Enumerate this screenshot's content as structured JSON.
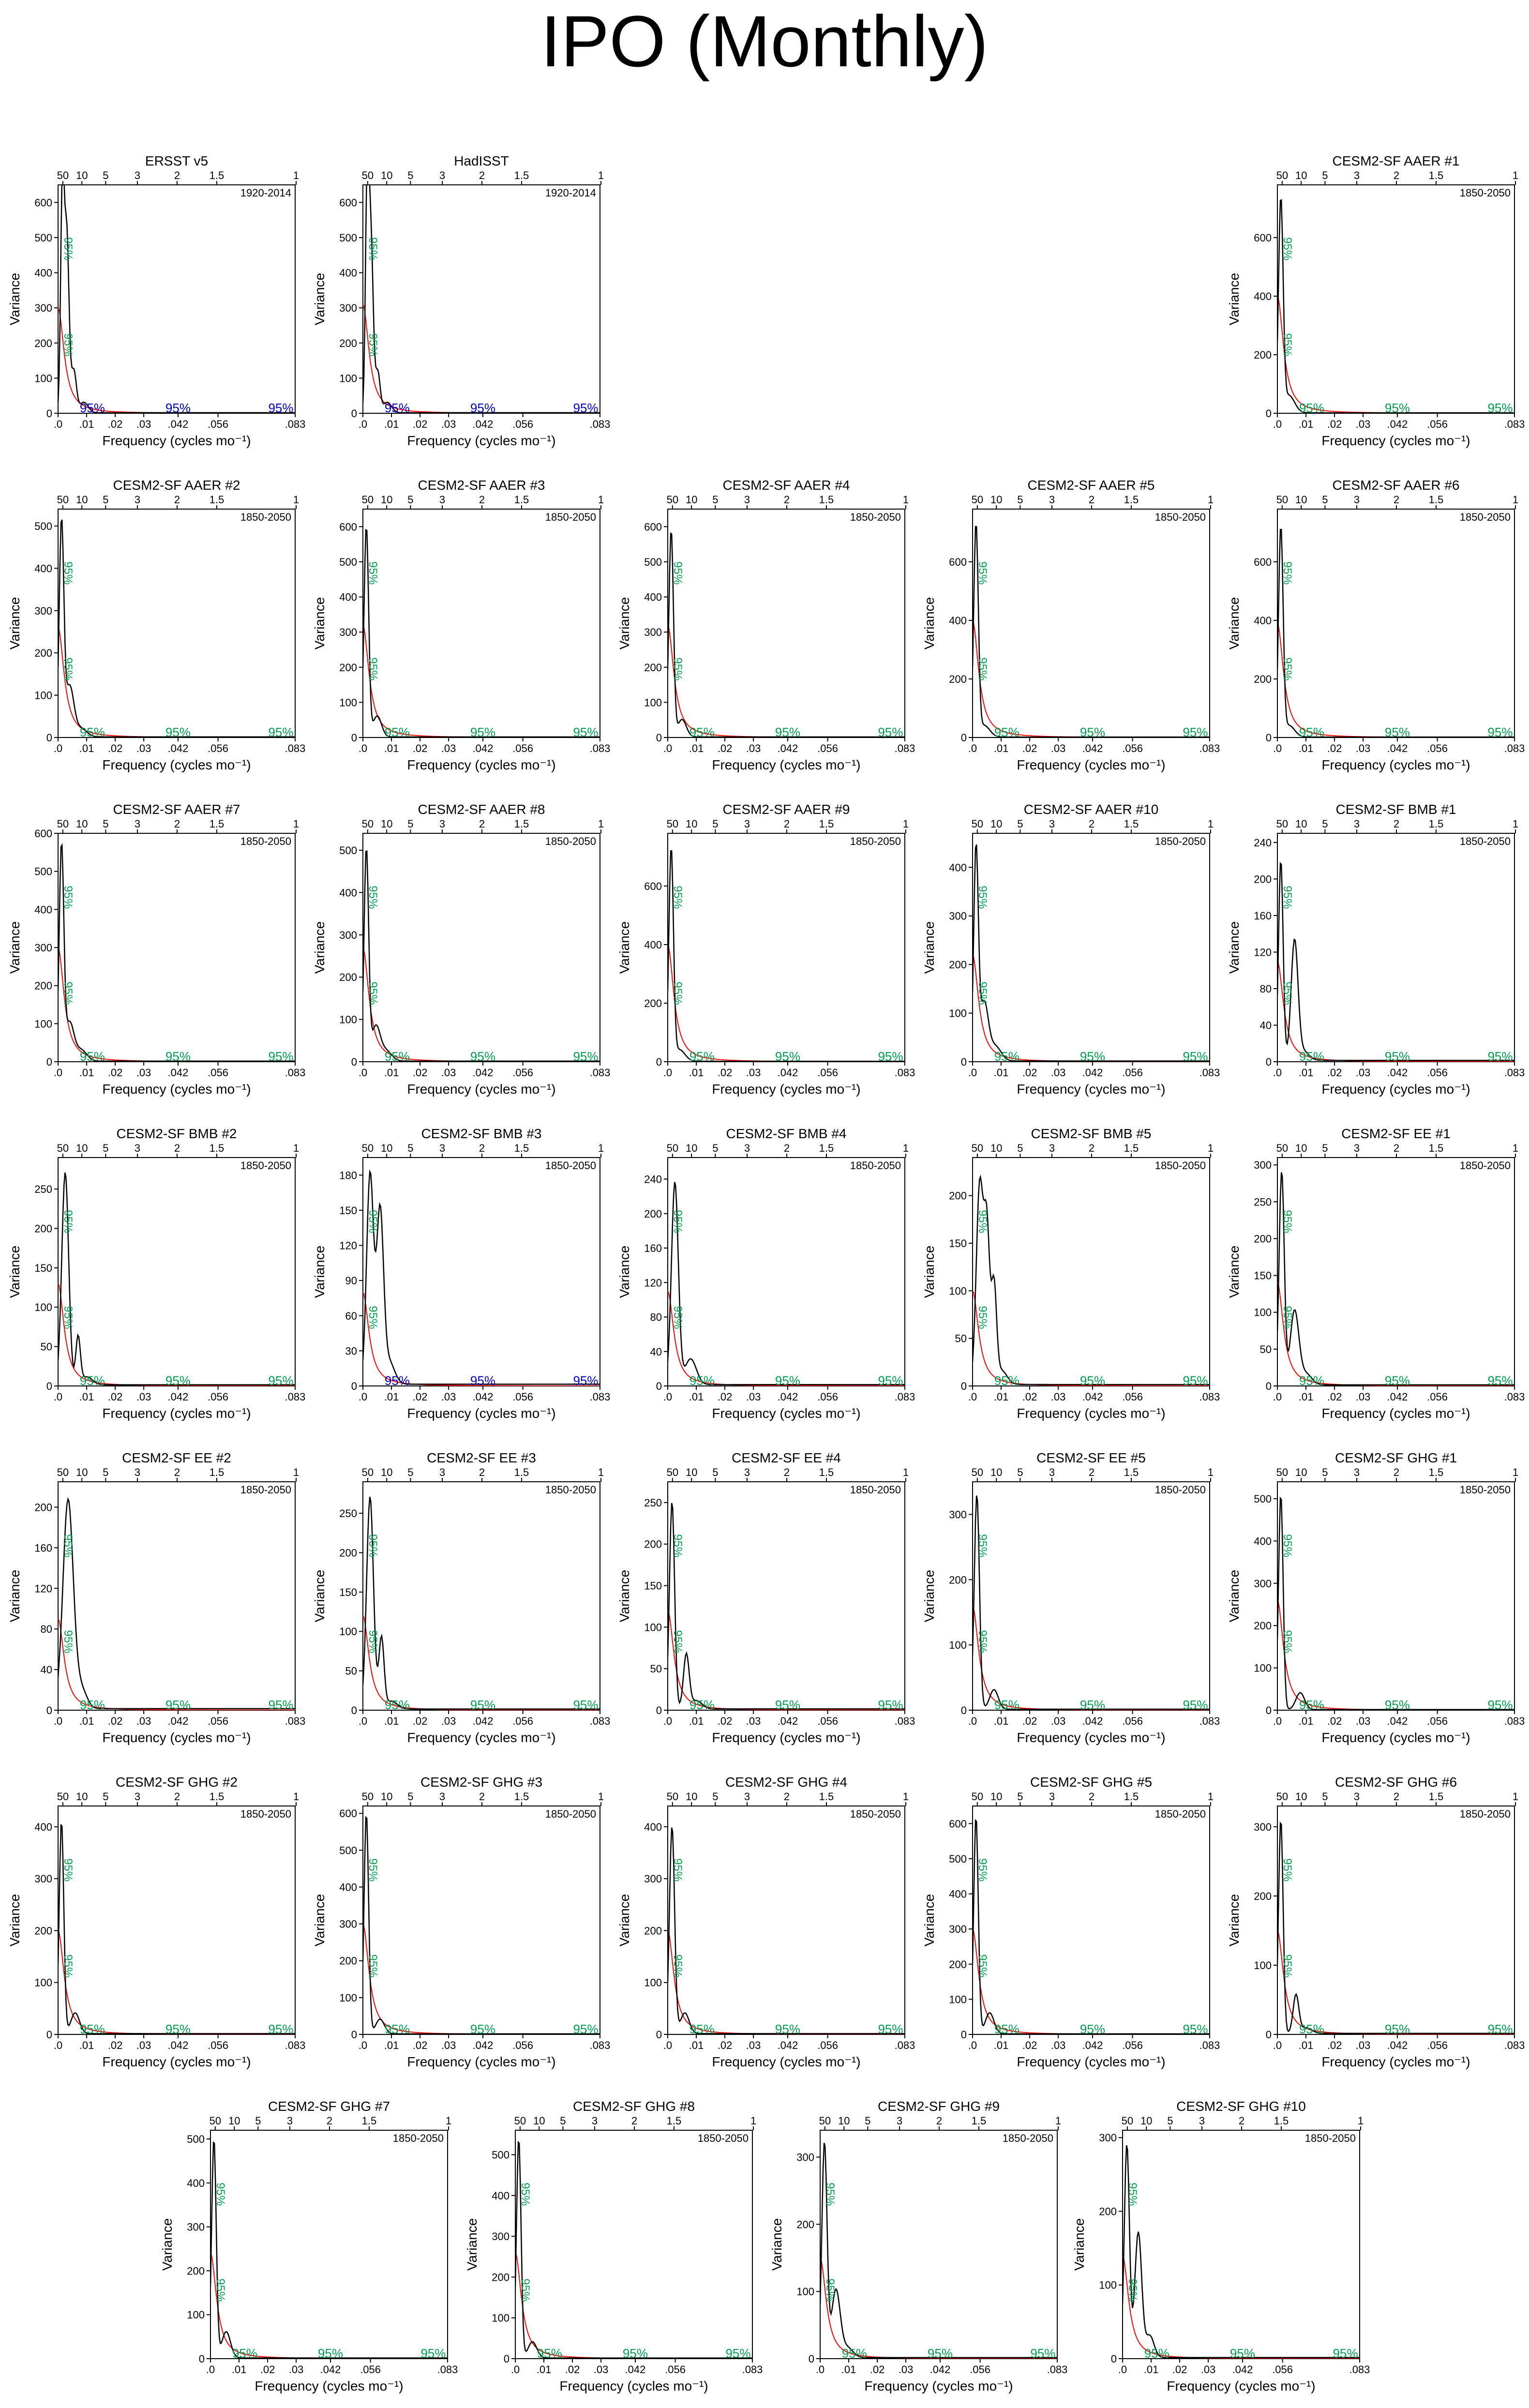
{
  "title": "IPO (Monthly)",
  "common": {
    "xlabel": "Frequency (cycles mo⁻¹)",
    "ylabel": "Variance",
    "x_ticks": [
      ".0",
      ".01",
      ".02",
      ".03",
      ".042",
      ".056",
      ".083"
    ],
    "x_tick_values": [
      0,
      0.01,
      0.02,
      0.03,
      0.042,
      0.056,
      0.083
    ],
    "period_ticks": [
      "50",
      "10",
      "5",
      "3",
      "2",
      "1.5",
      "1"
    ],
    "period_tick_values": [
      50,
      10,
      5,
      3,
      2,
      1.5,
      1
    ],
    "significance_label": "95%",
    "colors": {
      "spectrum": "#000000",
      "red_noise": "#ff0000",
      "significance_green": "#00a050",
      "significance_blue": "#0000cc",
      "axis": "#000000"
    }
  },
  "chart_data": [
    {
      "type": "line",
      "title": "ERSST v5",
      "period": "1920-2014",
      "ylim": [
        0,
        650
      ],
      "y_ticks": [
        0,
        100,
        200,
        300,
        400,
        500,
        600
      ],
      "sig_color": "blue",
      "peaks": [
        {
          "x": 0.0015,
          "y": 625,
          "w": 0.0006
        },
        {
          "x": 0.003,
          "y": 520,
          "w": 0.0008
        },
        {
          "x": 0.0055,
          "y": 120,
          "w": 0.0009
        },
        {
          "x": 0.009,
          "y": 30,
          "w": 0.0015
        }
      ],
      "rn_y0": 300
    },
    {
      "type": "line",
      "title": "HadISST",
      "period": "1920-2014",
      "ylim": [
        0,
        650
      ],
      "y_ticks": [
        0,
        100,
        200,
        300,
        400,
        500,
        600
      ],
      "sig_color": "blue",
      "peaks": [
        {
          "x": 0.0015,
          "y": 630,
          "w": 0.0006
        },
        {
          "x": 0.0028,
          "y": 500,
          "w": 0.0008
        },
        {
          "x": 0.0052,
          "y": 115,
          "w": 0.0008
        },
        {
          "x": 0.0085,
          "y": 30,
          "w": 0.0015
        }
      ],
      "rn_y0": 310
    },
    {
      "type": "line",
      "title": "CESM2-SF AAER #1",
      "period": "1850-2050",
      "ylim": [
        0,
        780
      ],
      "y_ticks": [
        0,
        200,
        400,
        600
      ],
      "sig_color": "green",
      "peaks": [
        {
          "x": 0.0012,
          "y": 720,
          "w": 0.0008
        },
        {
          "x": 0.004,
          "y": 60,
          "w": 0.002
        }
      ],
      "rn_y0": 400
    },
    {
      "type": "line",
      "title": "CESM2-SF AAER #2",
      "period": "1850-2050",
      "ylim": [
        0,
        540
      ],
      "y_ticks": [
        0,
        100,
        200,
        300,
        400,
        500
      ],
      "sig_color": "green",
      "peaks": [
        {
          "x": 0.0012,
          "y": 500,
          "w": 0.0008
        },
        {
          "x": 0.004,
          "y": 120,
          "w": 0.0015
        },
        {
          "x": 0.008,
          "y": 20,
          "w": 0.002
        }
      ],
      "rn_y0": 260
    },
    {
      "type": "line",
      "title": "CESM2-SF AAER #3",
      "period": "1850-2050",
      "ylim": [
        0,
        650
      ],
      "y_ticks": [
        0,
        100,
        200,
        300,
        400,
        500,
        600
      ],
      "sig_color": "green",
      "peaks": [
        {
          "x": 0.0012,
          "y": 600,
          "w": 0.0008
        },
        {
          "x": 0.005,
          "y": 60,
          "w": 0.0015
        }
      ],
      "rn_y0": 320
    },
    {
      "type": "line",
      "title": "CESM2-SF AAER #4",
      "period": "1850-2050",
      "ylim": [
        0,
        650
      ],
      "y_ticks": [
        0,
        100,
        200,
        300,
        400,
        500,
        600
      ],
      "sig_color": "green",
      "peaks": [
        {
          "x": 0.0012,
          "y": 590,
          "w": 0.0008
        },
        {
          "x": 0.005,
          "y": 50,
          "w": 0.0015
        }
      ],
      "rn_y0": 320
    },
    {
      "type": "line",
      "title": "CESM2-SF AAER #5",
      "period": "1850-2050",
      "ylim": [
        0,
        780
      ],
      "y_ticks": [
        0,
        200,
        400,
        600
      ],
      "sig_color": "green",
      "peaks": [
        {
          "x": 0.0012,
          "y": 720,
          "w": 0.0008
        },
        {
          "x": 0.004,
          "y": 40,
          "w": 0.002
        }
      ],
      "rn_y0": 400
    },
    {
      "type": "line",
      "title": "CESM2-SF AAER #6",
      "period": "1850-2050",
      "ylim": [
        0,
        780
      ],
      "y_ticks": [
        0,
        200,
        400,
        600
      ],
      "sig_color": "green",
      "peaks": [
        {
          "x": 0.0012,
          "y": 710,
          "w": 0.0008
        },
        {
          "x": 0.004,
          "y": 40,
          "w": 0.002
        }
      ],
      "rn_y0": 390
    },
    {
      "type": "line",
      "title": "CESM2-SF AAER #7",
      "period": "1850-2050",
      "ylim": [
        0,
        600
      ],
      "y_ticks": [
        0,
        100,
        200,
        300,
        400,
        500,
        600
      ],
      "sig_color": "green",
      "peaks": [
        {
          "x": 0.0012,
          "y": 560,
          "w": 0.0008
        },
        {
          "x": 0.004,
          "y": 100,
          "w": 0.0015
        },
        {
          "x": 0.008,
          "y": 30,
          "w": 0.002
        }
      ],
      "rn_y0": 300
    },
    {
      "type": "line",
      "title": "CESM2-SF AAER #8",
      "period": "1850-2050",
      "ylim": [
        0,
        540
      ],
      "y_ticks": [
        0,
        100,
        200,
        300,
        400,
        500
      ],
      "sig_color": "green",
      "peaks": [
        {
          "x": 0.0012,
          "y": 500,
          "w": 0.0008
        },
        {
          "x": 0.0045,
          "y": 80,
          "w": 0.0015
        },
        {
          "x": 0.008,
          "y": 25,
          "w": 0.002
        }
      ],
      "rn_y0": 270
    },
    {
      "type": "line",
      "title": "CESM2-SF AAER #9",
      "period": "1850-2050",
      "ylim": [
        0,
        780
      ],
      "y_ticks": [
        0,
        200,
        400,
        600
      ],
      "sig_color": "green",
      "peaks": [
        {
          "x": 0.0012,
          "y": 720,
          "w": 0.0008
        },
        {
          "x": 0.004,
          "y": 40,
          "w": 0.002
        }
      ],
      "rn_y0": 400
    },
    {
      "type": "line",
      "title": "CESM2-SF AAER #10",
      "period": "1850-2050",
      "ylim": [
        0,
        470
      ],
      "y_ticks": [
        0,
        100,
        200,
        300,
        400
      ],
      "sig_color": "green",
      "peaks": [
        {
          "x": 0.0012,
          "y": 430,
          "w": 0.0008
        },
        {
          "x": 0.004,
          "y": 120,
          "w": 0.0015
        },
        {
          "x": 0.008,
          "y": 30,
          "w": 0.002
        }
      ],
      "rn_y0": 220
    },
    {
      "type": "line",
      "title": "CESM2-SF BMB #1",
      "period": "1850-2050",
      "ylim": [
        0,
        250
      ],
      "y_ticks": [
        0,
        40,
        80,
        120,
        160,
        200,
        240
      ],
      "sig_color": "green",
      "peaks": [
        {
          "x": 0.0012,
          "y": 220,
          "w": 0.0008
        },
        {
          "x": 0.006,
          "y": 130,
          "w": 0.0012
        },
        {
          "x": 0.009,
          "y": 10,
          "w": 0.002
        }
      ],
      "rn_y0": 110
    },
    {
      "type": "line",
      "title": "CESM2-SF BMB #2",
      "period": "1850-2050",
      "ylim": [
        0,
        290
      ],
      "y_ticks": [
        0,
        50,
        100,
        150,
        200,
        250
      ],
      "sig_color": "green",
      "peaks": [
        {
          "x": 0.0025,
          "y": 270,
          "w": 0.0012
        },
        {
          "x": 0.007,
          "y": 60,
          "w": 0.0008
        },
        {
          "x": 0.01,
          "y": 10,
          "w": 0.002
        }
      ],
      "rn_y0": 130
    },
    {
      "type": "line",
      "title": "CESM2-SF BMB #3",
      "period": "1850-2050",
      "ylim": [
        0,
        195
      ],
      "y_ticks": [
        0,
        30,
        60,
        90,
        120,
        150,
        180
      ],
      "sig_color": "blue",
      "peaks": [
        {
          "x": 0.0025,
          "y": 180,
          "w": 0.0012
        },
        {
          "x": 0.006,
          "y": 145,
          "w": 0.0012
        },
        {
          "x": 0.009,
          "y": 20,
          "w": 0.002
        }
      ],
      "rn_y0": 80
    },
    {
      "type": "line",
      "title": "CESM2-SF BMB #4",
      "period": "1850-2050",
      "ylim": [
        0,
        265
      ],
      "y_ticks": [
        0,
        40,
        80,
        120,
        160,
        200,
        240
      ],
      "sig_color": "green",
      "peaks": [
        {
          "x": 0.0025,
          "y": 235,
          "w": 0.0012
        },
        {
          "x": 0.008,
          "y": 30,
          "w": 0.002
        }
      ],
      "rn_y0": 110
    },
    {
      "type": "line",
      "title": "CESM2-SF BMB #5",
      "period": "1850-2050",
      "ylim": [
        0,
        240
      ],
      "y_ticks": [
        0,
        50,
        100,
        150,
        200
      ],
      "sig_color": "green",
      "peaks": [
        {
          "x": 0.0025,
          "y": 210,
          "w": 0.0012
        },
        {
          "x": 0.005,
          "y": 160,
          "w": 0.001
        },
        {
          "x": 0.0075,
          "y": 100,
          "w": 0.0009
        },
        {
          "x": 0.01,
          "y": 15,
          "w": 0.002
        }
      ],
      "rn_y0": 100
    },
    {
      "type": "line",
      "title": "CESM2-SF EE #1",
      "period": "1850-2050",
      "ylim": [
        0,
        310
      ],
      "y_ticks": [
        0,
        50,
        100,
        150,
        200,
        250,
        300
      ],
      "sig_color": "green",
      "peaks": [
        {
          "x": 0.0015,
          "y": 290,
          "w": 0.0009
        },
        {
          "x": 0.006,
          "y": 100,
          "w": 0.0015
        },
        {
          "x": 0.01,
          "y": 15,
          "w": 0.002
        }
      ],
      "rn_y0": 140
    },
    {
      "type": "line",
      "title": "CESM2-SF EE #2",
      "period": "1850-2050",
      "ylim": [
        0,
        225
      ],
      "y_ticks": [
        0,
        40,
        80,
        120,
        160,
        200
      ],
      "sig_color": "green",
      "peaks": [
        {
          "x": 0.0035,
          "y": 205,
          "w": 0.0018
        },
        {
          "x": 0.008,
          "y": 20,
          "w": 0.002
        }
      ],
      "rn_y0": 90
    },
    {
      "type": "line",
      "title": "CESM2-SF EE #3",
      "period": "1850-2050",
      "ylim": [
        0,
        290
      ],
      "y_ticks": [
        0,
        50,
        100,
        150,
        200,
        250
      ],
      "sig_color": "green",
      "peaks": [
        {
          "x": 0.0025,
          "y": 270,
          "w": 0.0012
        },
        {
          "x": 0.0065,
          "y": 90,
          "w": 0.0009
        },
        {
          "x": 0.01,
          "y": 10,
          "w": 0.002
        }
      ],
      "rn_y0": 120
    },
    {
      "type": "line",
      "title": "CESM2-SF EE #4",
      "period": "1850-2050",
      "ylim": [
        0,
        275
      ],
      "y_ticks": [
        0,
        50,
        100,
        150,
        200,
        250
      ],
      "sig_color": "green",
      "peaks": [
        {
          "x": 0.0015,
          "y": 250,
          "w": 0.0009
        },
        {
          "x": 0.0065,
          "y": 65,
          "w": 0.001
        },
        {
          "x": 0.01,
          "y": 10,
          "w": 0.002
        }
      ],
      "rn_y0": 120
    },
    {
      "type": "line",
      "title": "CESM2-SF EE #5",
      "period": "1850-2050",
      "ylim": [
        0,
        350
      ],
      "y_ticks": [
        0,
        100,
        200,
        300
      ],
      "sig_color": "green",
      "peaks": [
        {
          "x": 0.0015,
          "y": 330,
          "w": 0.0009
        },
        {
          "x": 0.0075,
          "y": 30,
          "w": 0.0015
        }
      ],
      "rn_y0": 160
    },
    {
      "type": "line",
      "title": "CESM2-SF GHG #1",
      "period": "1850-2050",
      "ylim": [
        0,
        540
      ],
      "y_ticks": [
        0,
        100,
        200,
        300,
        400,
        500
      ],
      "sig_color": "green",
      "peaks": [
        {
          "x": 0.0012,
          "y": 510,
          "w": 0.0008
        },
        {
          "x": 0.008,
          "y": 40,
          "w": 0.0015
        }
      ],
      "rn_y0": 260
    },
    {
      "type": "line",
      "title": "CESM2-SF GHG #2",
      "period": "1850-2050",
      "ylim": [
        0,
        440
      ],
      "y_ticks": [
        0,
        100,
        200,
        300,
        400
      ],
      "sig_color": "green",
      "peaks": [
        {
          "x": 0.0012,
          "y": 410,
          "w": 0.0008
        },
        {
          "x": 0.006,
          "y": 40,
          "w": 0.0015
        }
      ],
      "rn_y0": 200
    },
    {
      "type": "line",
      "title": "CESM2-SF GHG #3",
      "period": "1850-2050",
      "ylim": [
        0,
        620
      ],
      "y_ticks": [
        0,
        100,
        200,
        300,
        400,
        500,
        600
      ],
      "sig_color": "green",
      "peaks": [
        {
          "x": 0.0012,
          "y": 600,
          "w": 0.0008
        },
        {
          "x": 0.006,
          "y": 40,
          "w": 0.0015
        }
      ],
      "rn_y0": 300
    },
    {
      "type": "line",
      "title": "CESM2-SF GHG #4",
      "period": "1850-2050",
      "ylim": [
        0,
        440
      ],
      "y_ticks": [
        0,
        100,
        200,
        300,
        400
      ],
      "sig_color": "green",
      "peaks": [
        {
          "x": 0.0015,
          "y": 400,
          "w": 0.0009
        },
        {
          "x": 0.006,
          "y": 40,
          "w": 0.0015
        }
      ],
      "rn_y0": 200
    },
    {
      "type": "line",
      "title": "CESM2-SF GHG #5",
      "period": "1850-2050",
      "ylim": [
        0,
        650
      ],
      "y_ticks": [
        0,
        100,
        200,
        300,
        400,
        500,
        600
      ],
      "sig_color": "green",
      "peaks": [
        {
          "x": 0.0012,
          "y": 620,
          "w": 0.0008
        },
        {
          "x": 0.006,
          "y": 60,
          "w": 0.0015
        }
      ],
      "rn_y0": 300
    },
    {
      "type": "line",
      "title": "CESM2-SF GHG #6",
      "period": "1850-2050",
      "ylim": [
        0,
        330
      ],
      "y_ticks": [
        0,
        100,
        200,
        300
      ],
      "sig_color": "green",
      "peaks": [
        {
          "x": 0.0012,
          "y": 310,
          "w": 0.0008
        },
        {
          "x": 0.0065,
          "y": 55,
          "w": 0.001
        },
        {
          "x": 0.01,
          "y": 8,
          "w": 0.002
        }
      ],
      "rn_y0": 150
    },
    {
      "type": "line",
      "title": "CESM2-SF GHG #7",
      "period": "1850-2050",
      "ylim": [
        0,
        520
      ],
      "y_ticks": [
        0,
        100,
        200,
        300,
        400,
        500
      ],
      "sig_color": "green",
      "peaks": [
        {
          "x": 0.0012,
          "y": 500,
          "w": 0.0008
        },
        {
          "x": 0.0055,
          "y": 60,
          "w": 0.0015
        }
      ],
      "rn_y0": 240
    },
    {
      "type": "line",
      "title": "CESM2-SF GHG #8",
      "period": "1850-2050",
      "ylim": [
        0,
        560
      ],
      "y_ticks": [
        0,
        100,
        200,
        300,
        400,
        500
      ],
      "sig_color": "green",
      "peaks": [
        {
          "x": 0.0012,
          "y": 540,
          "w": 0.0008
        },
        {
          "x": 0.006,
          "y": 40,
          "w": 0.0015
        }
      ],
      "rn_y0": 260
    },
    {
      "type": "line",
      "title": "CESM2-SF GHG #9",
      "period": "1850-2050",
      "ylim": [
        0,
        340
      ],
      "y_ticks": [
        0,
        100,
        200,
        300
      ],
      "sig_color": "green",
      "peaks": [
        {
          "x": 0.0015,
          "y": 320,
          "w": 0.0009
        },
        {
          "x": 0.0055,
          "y": 100,
          "w": 0.0015
        },
        {
          "x": 0.0095,
          "y": 15,
          "w": 0.002
        }
      ],
      "rn_y0": 150
    },
    {
      "type": "line",
      "title": "CESM2-SF GHG #10",
      "period": "1850-2050",
      "ylim": [
        0,
        310
      ],
      "y_ticks": [
        0,
        100,
        200,
        300
      ],
      "sig_color": "green",
      "peaks": [
        {
          "x": 0.0015,
          "y": 290,
          "w": 0.0009
        },
        {
          "x": 0.0055,
          "y": 170,
          "w": 0.0012
        },
        {
          "x": 0.0095,
          "y": 30,
          "w": 0.0015
        }
      ],
      "rn_y0": 140
    }
  ]
}
